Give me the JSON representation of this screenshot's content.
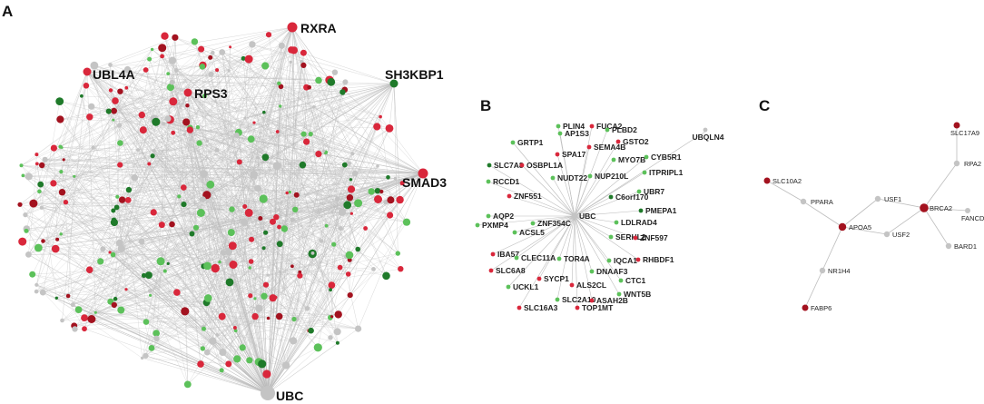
{
  "colors": {
    "red": "#d9273b",
    "dark_red": "#a3121f",
    "green": "#5cc15a",
    "dark_green": "#1f7a2a",
    "grey": "#c4c4c4",
    "edge": "#bdbdbd"
  },
  "panels": {
    "A": {
      "letter": "A",
      "hubs": [
        {
          "id": "RXRA",
          "label": "RXRA",
          "color": "red"
        },
        {
          "id": "UBL4A",
          "label": "UBL4A",
          "color": "red"
        },
        {
          "id": "RPS3",
          "label": "RPS3",
          "color": "red"
        },
        {
          "id": "SH3KBP1",
          "label": "SH3KBP1",
          "color": "dark_green"
        },
        {
          "id": "SMAD3",
          "label": "SMAD3",
          "color": "red"
        },
        {
          "id": "UBC",
          "label": "UBC",
          "color": "grey"
        }
      ]
    },
    "B": {
      "letter": "B",
      "center": {
        "id": "UBC",
        "label": "UBC",
        "color": "grey"
      },
      "nodes": [
        {
          "label": "PLIN4",
          "color": "green"
        },
        {
          "label": "AP1S3",
          "color": "green"
        },
        {
          "label": "FUCA2",
          "color": "red"
        },
        {
          "label": "PLBD2",
          "color": "green"
        },
        {
          "label": "GRTP1",
          "color": "green"
        },
        {
          "label": "SPA17",
          "color": "red"
        },
        {
          "label": "SEMA4B",
          "color": "red"
        },
        {
          "label": "GSTO2",
          "color": "red"
        },
        {
          "label": "SLC7A8",
          "color": "dark_green"
        },
        {
          "label": "OSBPL1A",
          "color": "red"
        },
        {
          "label": "MYO7B",
          "color": "green"
        },
        {
          "label": "CYB5R1",
          "color": "green"
        },
        {
          "label": "UBQLN4",
          "color": "grey"
        },
        {
          "label": "RCCD1",
          "color": "green"
        },
        {
          "label": "NUDT22",
          "color": "green"
        },
        {
          "label": "NUP210L",
          "color": "green"
        },
        {
          "label": "ITPRIPL1",
          "color": "green"
        },
        {
          "label": "ZNF551",
          "color": "red"
        },
        {
          "label": "C6orf170",
          "color": "dark_green"
        },
        {
          "label": "UBR7",
          "color": "green"
        },
        {
          "label": "AQP2",
          "color": "green"
        },
        {
          "label": "PMEPA1",
          "color": "dark_green"
        },
        {
          "label": "PXMP4",
          "color": "green"
        },
        {
          "label": "ZNF354C",
          "color": "green"
        },
        {
          "label": "LDLRAD4",
          "color": "green"
        },
        {
          "label": "ACSL5",
          "color": "green"
        },
        {
          "label": "SERHL2",
          "color": "green"
        },
        {
          "label": "ZNF597",
          "color": "red"
        },
        {
          "label": "IBA57",
          "color": "red"
        },
        {
          "label": "CLEC11A",
          "color": "green"
        },
        {
          "label": "TOR4A",
          "color": "green"
        },
        {
          "label": "IQCA1",
          "color": "green"
        },
        {
          "label": "RHBDF1",
          "color": "red"
        },
        {
          "label": "SLC6A8",
          "color": "red"
        },
        {
          "label": "SYCP1",
          "color": "red"
        },
        {
          "label": "ALS2CL",
          "color": "red"
        },
        {
          "label": "DNAAF3",
          "color": "green"
        },
        {
          "label": "CTC1",
          "color": "green"
        },
        {
          "label": "UCKL1",
          "color": "green"
        },
        {
          "label": "WNT5B",
          "color": "green"
        },
        {
          "label": "SLC2A10",
          "color": "green"
        },
        {
          "label": "ASAH2B",
          "color": "red"
        },
        {
          "label": "SLC16A3",
          "color": "red"
        },
        {
          "label": "TOP1MT",
          "color": "red"
        }
      ]
    },
    "C": {
      "letter": "C",
      "nodes": [
        {
          "id": "SLC17A9",
          "label": "SLC17A9",
          "color": "dark_red"
        },
        {
          "id": "RPA2",
          "label": "RPA2",
          "color": "grey"
        },
        {
          "id": "SLC10A2",
          "label": "SLC10A2",
          "color": "dark_red"
        },
        {
          "id": "PPARA",
          "label": "PPARA",
          "color": "grey"
        },
        {
          "id": "USF1",
          "label": "USF1",
          "color": "grey"
        },
        {
          "id": "BRCA2",
          "label": "BRCA2",
          "color": "dark_red"
        },
        {
          "id": "FANCD2",
          "label": "FANCD2",
          "color": "grey"
        },
        {
          "id": "APOA5",
          "label": "APOA5",
          "color": "dark_red"
        },
        {
          "id": "USF2",
          "label": "USF2",
          "color": "grey"
        },
        {
          "id": "BARD1",
          "label": "BARD1",
          "color": "grey"
        },
        {
          "id": "NR1H4",
          "label": "NR1H4",
          "color": "grey"
        },
        {
          "id": "FABP6",
          "label": "FABP6",
          "color": "dark_red"
        }
      ],
      "edges": [
        [
          "SLC17A9",
          "RPA2"
        ],
        [
          "RPA2",
          "BRCA2"
        ],
        [
          "BRCA2",
          "FANCD2"
        ],
        [
          "BRCA2",
          "BARD1"
        ],
        [
          "BRCA2",
          "USF1"
        ],
        [
          "BRCA2",
          "USF2"
        ],
        [
          "USF1",
          "APOA5"
        ],
        [
          "USF2",
          "APOA5"
        ],
        [
          "PPARA",
          "APOA5"
        ],
        [
          "SLC10A2",
          "PPARA"
        ],
        [
          "APOA5",
          "NR1H4"
        ],
        [
          "NR1H4",
          "FABP6"
        ]
      ]
    }
  }
}
